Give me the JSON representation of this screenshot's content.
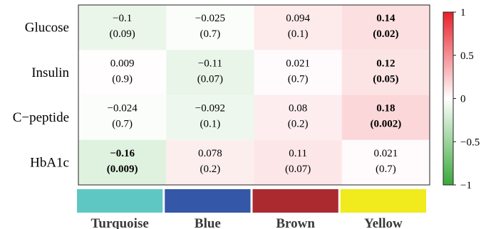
{
  "chart_data": {
    "type": "heatmap",
    "rows": [
      "Glucose",
      "Insulin",
      "C−peptide",
      "HbA1c"
    ],
    "columns": [
      "Turquoise",
      "Blue",
      "Brown",
      "Yellow"
    ],
    "column_colors": [
      "#5fc7c3",
      "#3457a8",
      "#ab2a2f",
      "#f1ea1c"
    ],
    "values": [
      [
        -0.1,
        -0.025,
        0.094,
        0.14
      ],
      [
        0.009,
        -0.11,
        0.021,
        0.12
      ],
      [
        -0.024,
        -0.092,
        0.08,
        0.18
      ],
      [
        -0.16,
        0.078,
        0.11,
        0.021
      ]
    ],
    "value_labels": [
      [
        "−0.1",
        "−0.025",
        "0.094",
        "0.14"
      ],
      [
        "0.009",
        "−0.11",
        "0.021",
        "0.12"
      ],
      [
        "−0.024",
        "−0.092",
        "0.08",
        "0.18"
      ],
      [
        "−0.16",
        "0.078",
        "0.11",
        "0.021"
      ]
    ],
    "pvalue_labels": [
      [
        "(0.09)",
        "(0.7)",
        "(0.1)",
        "(0.02)"
      ],
      [
        "(0.9)",
        "(0.07)",
        "(0.7)",
        "(0.05)"
      ],
      [
        "(0.7)",
        "(0.1)",
        "(0.2)",
        "(0.002)"
      ],
      [
        "(0.009)",
        "(0.2)",
        "(0.07)",
        "(0.7)"
      ]
    ],
    "bold": [
      [
        false,
        false,
        false,
        true
      ],
      [
        false,
        false,
        false,
        true
      ],
      [
        false,
        false,
        false,
        true
      ],
      [
        true,
        false,
        false,
        false
      ]
    ],
    "colorbar": {
      "range": [
        -1,
        1
      ],
      "ticks": [
        1,
        0.5,
        0,
        -0.5,
        -1
      ],
      "tick_labels": [
        "1",
        "0.5",
        "0",
        "−0.5",
        "−1"
      ],
      "colors": {
        "low": "#3aa83a",
        "mid": "#ffffff",
        "high": "#e8202a"
      }
    }
  }
}
